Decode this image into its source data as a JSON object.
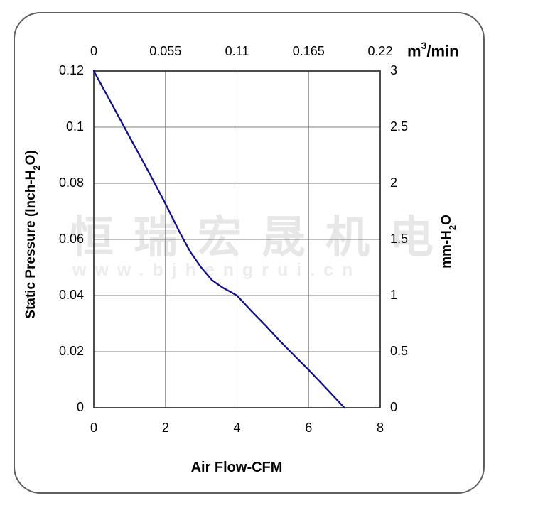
{
  "watermark": {
    "cn_text": "恒瑞宏晟机电",
    "url_text": "www.bjhengrui.cn"
  },
  "colors": {
    "curve": "#10108e",
    "grid": "#7f7f7f",
    "plot_frame": "#383838",
    "outer_border": "#5f5f5f",
    "watermark_cn": "#e7e7e7",
    "watermark_url": "#ededed",
    "text": "#000000"
  },
  "chart_data": {
    "type": "line",
    "title": "",
    "grid": true,
    "x_bottom": {
      "label": "Air Flow-CFM",
      "range": [
        0,
        8
      ],
      "ticks": [
        "0",
        "2",
        "4",
        "6",
        "8"
      ],
      "tick_values": [
        0,
        2,
        4,
        6,
        8
      ]
    },
    "x_top": {
      "unit_prefix": "m",
      "unit_sup": "3",
      "unit_suffix": "/min",
      "range": [
        0,
        0.22
      ],
      "ticks": [
        "0",
        "0.055",
        "0.11",
        "0.165",
        "0.22"
      ],
      "tick_values": [
        0,
        0.055,
        0.11,
        0.165,
        0.22
      ]
    },
    "y_left": {
      "label_prefix": "Static Pressure (Inch-H",
      "label_sub": "2",
      "label_suffix": "O)",
      "range": [
        0,
        0.12
      ],
      "ticks": [
        "0.12",
        "0.1",
        "0.08",
        "0.06",
        "0.04",
        "0.02",
        "0"
      ],
      "tick_values": [
        0.12,
        0.1,
        0.08,
        0.06,
        0.04,
        0.02,
        0
      ]
    },
    "y_right": {
      "label_prefix": "mm-H",
      "label_sub": "2",
      "label_suffix": "O",
      "range": [
        0,
        3
      ],
      "ticks": [
        "3",
        "2.5",
        "2",
        "1.5",
        "1",
        "0.5",
        "0"
      ],
      "tick_values": [
        3,
        2.5,
        2,
        1.5,
        1,
        0.5,
        0
      ]
    },
    "series": [
      {
        "name": "static-pressure-vs-airflow",
        "x_unit": "CFM",
        "y_unit": "Inch-H2O",
        "points": [
          [
            0,
            0.12
          ],
          [
            0.5,
            0.1083
          ],
          [
            1,
            0.0965
          ],
          [
            1.5,
            0.0848
          ],
          [
            2,
            0.0727
          ],
          [
            2.4,
            0.0625
          ],
          [
            2.7,
            0.0555
          ],
          [
            3,
            0.05
          ],
          [
            3.3,
            0.0455
          ],
          [
            3.6,
            0.0428
          ],
          [
            4,
            0.04
          ],
          [
            4.4,
            0.0345
          ],
          [
            4.8,
            0.0293
          ],
          [
            5.2,
            0.0238
          ],
          [
            5.6,
            0.0186
          ],
          [
            6,
            0.0135
          ],
          [
            6.5,
            0.0068
          ],
          [
            7,
            0
          ]
        ]
      }
    ]
  }
}
